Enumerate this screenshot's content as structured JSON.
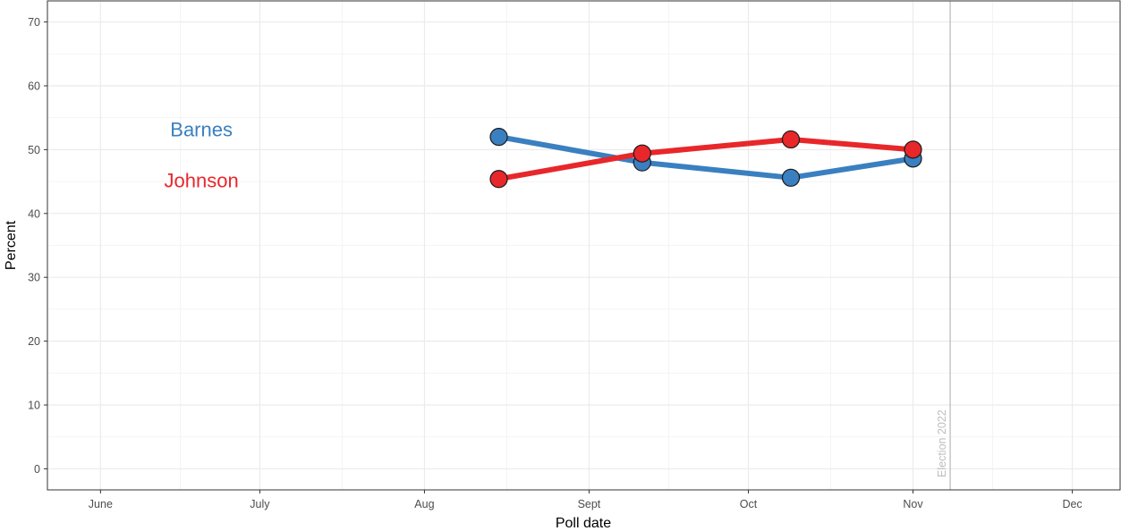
{
  "chart_data": {
    "type": "line",
    "xlabel": "Poll date",
    "ylabel": "Percent",
    "ylim": [
      -3.3,
      73.3
    ],
    "y_ticks": [
      0,
      10,
      20,
      30,
      40,
      50,
      60,
      70
    ],
    "x_ticks": [
      {
        "label": "June",
        "date": "2022-06-01"
      },
      {
        "label": "July",
        "date": "2022-07-01"
      },
      {
        "label": "Aug",
        "date": "2022-08-01"
      },
      {
        "label": "Sept",
        "date": "2022-09-01"
      },
      {
        "label": "Oct",
        "date": "2022-10-01"
      },
      {
        "label": "Nov",
        "date": "2022-11-01"
      },
      {
        "label": "Dec",
        "date": "2022-12-01"
      }
    ],
    "xlim": [
      "2022-05-22",
      "2022-12-10"
    ],
    "grid": true,
    "series": [
      {
        "name": "Barnes",
        "color": "#3a80c0",
        "label_position": {
          "date": "2022-06-20",
          "value": 53.2
        },
        "points": [
          {
            "date": "2022-08-15",
            "value": 52
          },
          {
            "date": "2022-09-11",
            "value": 48
          },
          {
            "date": "2022-10-09",
            "value": 45.6
          },
          {
            "date": "2022-11-01",
            "value": 48.6
          }
        ]
      },
      {
        "name": "Johnson",
        "color": "#e8272b",
        "label_position": {
          "date": "2022-06-20",
          "value": 45.2
        },
        "points": [
          {
            "date": "2022-08-15",
            "value": 45.4
          },
          {
            "date": "2022-09-11",
            "value": 49.4
          },
          {
            "date": "2022-10-09",
            "value": 51.6
          },
          {
            "date": "2022-11-01",
            "value": 50
          }
        ]
      }
    ],
    "annotations": [
      {
        "type": "vline",
        "date": "2022-11-08",
        "label": "Election 2022",
        "color": "#bdbdbd"
      }
    ]
  }
}
